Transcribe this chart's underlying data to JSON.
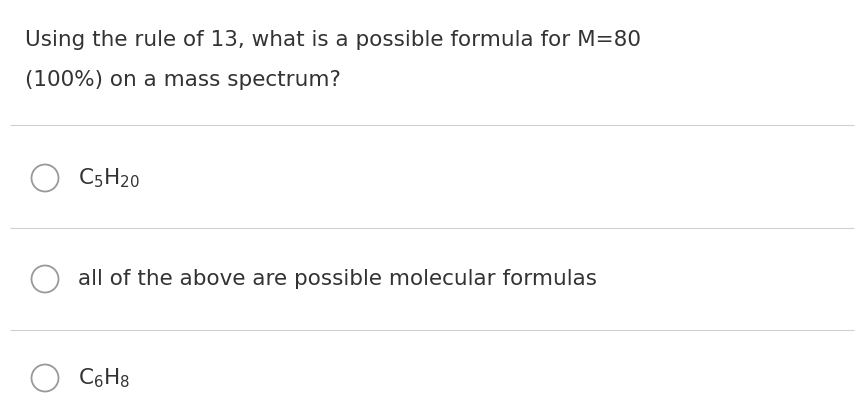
{
  "bg_color": "#ffffff",
  "question_line1": "Using the rule of 13, what is a possible formula for M=80",
  "question_line2": "(100%) on a mass spectrum?",
  "options": [
    {
      "text_latex": "C$_5$H$_{20}$"
    },
    {
      "text_plain": "all of the above are possible molecular formulas"
    },
    {
      "text_latex": "C$_6$H$_8$"
    }
  ],
  "divider_color": "#d0d0d0",
  "circle_color": "#999999",
  "text_color": "#333333",
  "question_fontsize": 15.5,
  "option_fontsize": 15.5
}
